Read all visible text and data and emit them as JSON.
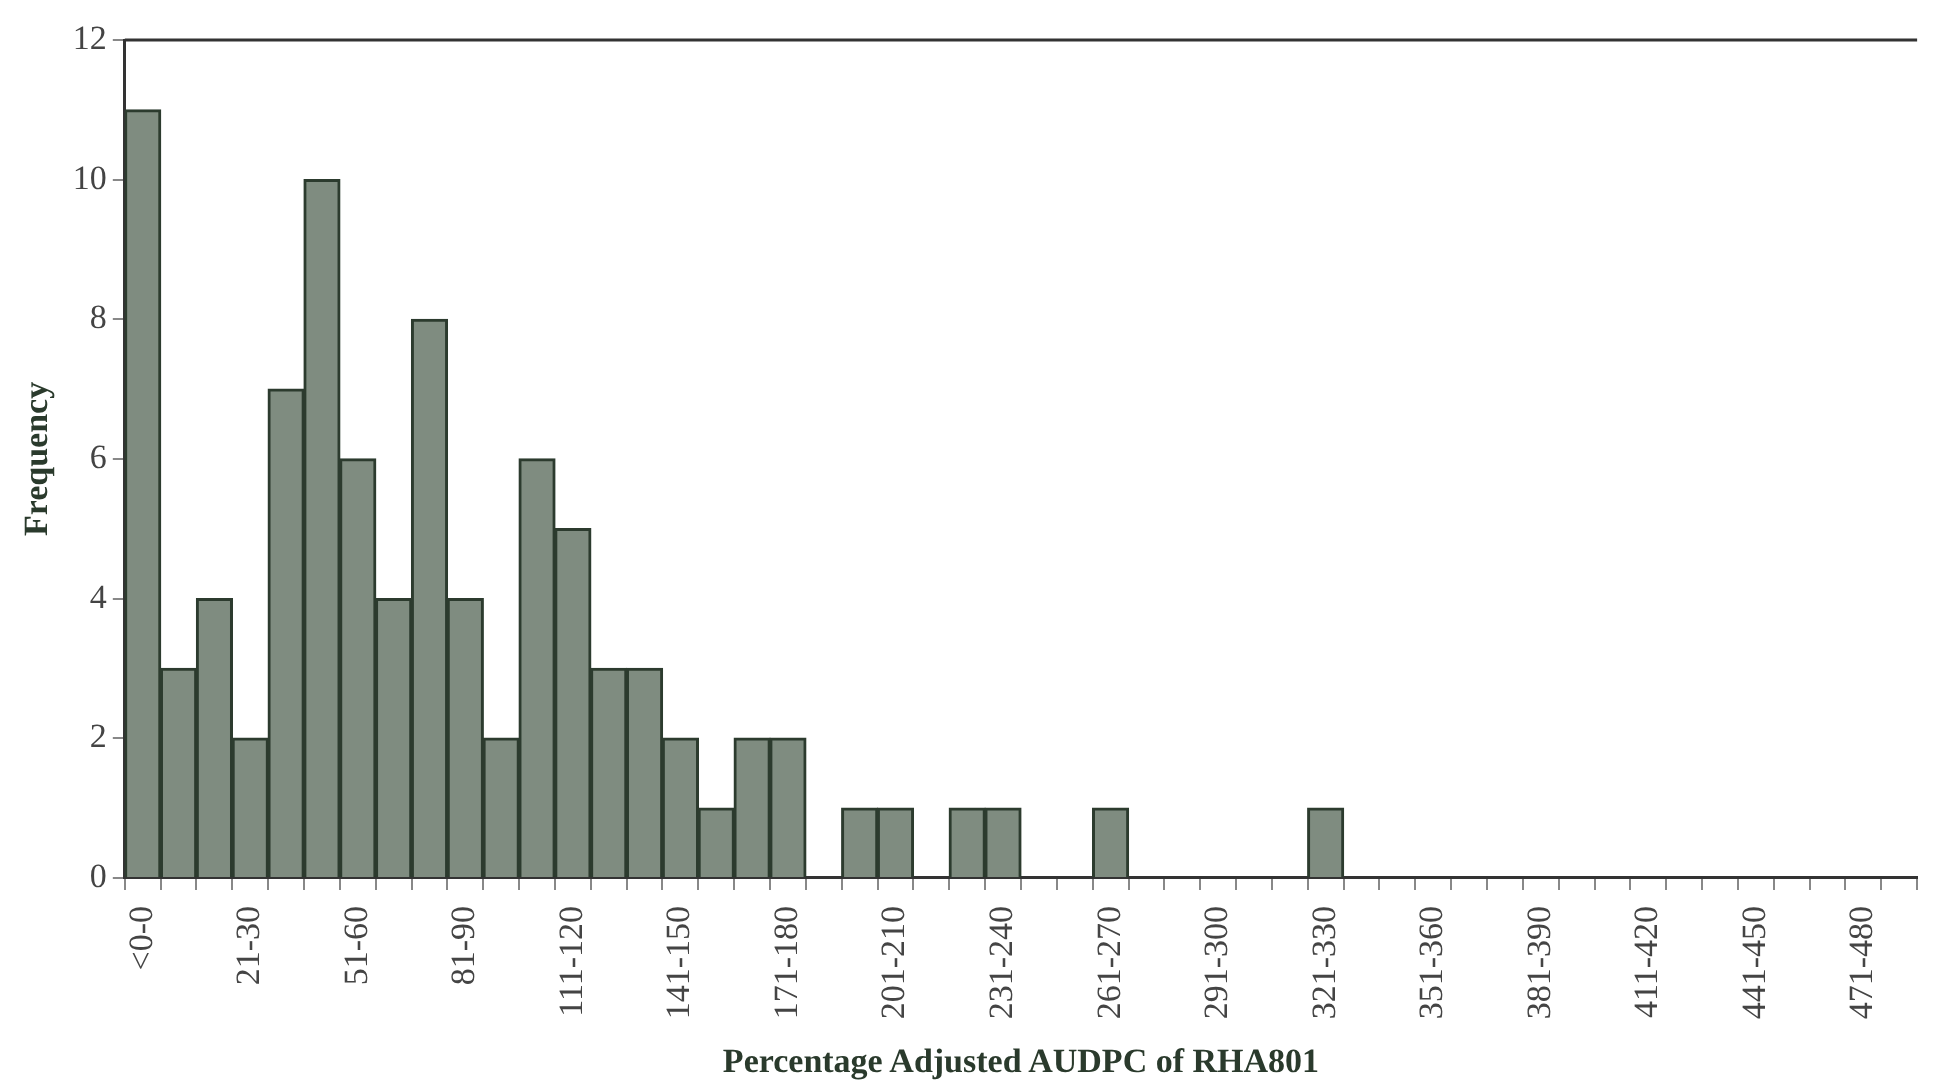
{
  "chart_data": {
    "type": "bar",
    "xlabel": "Percentage Adjusted AUDPC of RHA801",
    "ylabel": "Frequency",
    "categories": [
      "<0-0",
      null,
      null,
      "21-30",
      null,
      null,
      "51-60",
      null,
      null,
      "81-90",
      null,
      null,
      "111-120",
      null,
      null,
      "141-150",
      null,
      null,
      "171-180",
      null,
      null,
      "201-210",
      null,
      null,
      "231-240",
      null,
      null,
      "261-270",
      null,
      null,
      "291-300",
      null,
      null,
      "321-330",
      null,
      null,
      "351-360",
      null,
      null,
      "381-390",
      null,
      null,
      "411-420",
      null,
      null,
      "441-450",
      null,
      null,
      "471-480",
      null
    ],
    "values": [
      11,
      3,
      4,
      2,
      7,
      10,
      6,
      4,
      8,
      4,
      2,
      6,
      5,
      3,
      3,
      2,
      1,
      2,
      2,
      0,
      1,
      1,
      0,
      1,
      1,
      0,
      0,
      1,
      0,
      0,
      0,
      0,
      0,
      1,
      0,
      0,
      0,
      0,
      0,
      0,
      0,
      0,
      0,
      0,
      0,
      0,
      0,
      0,
      0,
      0
    ],
    "color": "#7f8c80",
    "ylim": [
      0,
      12
    ],
    "yticks": [
      0,
      2,
      4,
      6,
      8,
      10,
      12
    ],
    "grid": false,
    "legend": false
  }
}
